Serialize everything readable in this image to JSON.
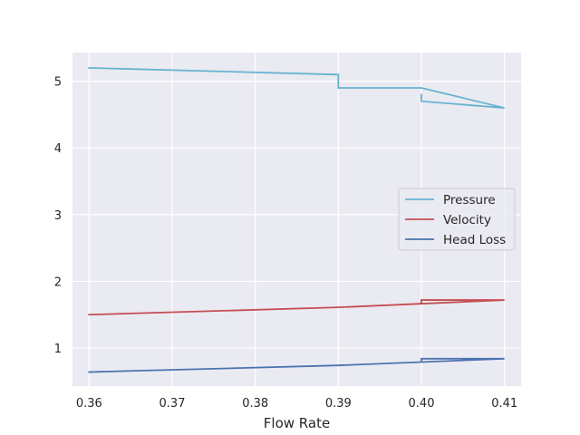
{
  "chart_data": {
    "type": "line",
    "title": "",
    "xlabel": "Flow Rate",
    "ylabel": "",
    "xlim": [
      0.358,
      0.412
    ],
    "ylim": [
      0.43,
      5.43
    ],
    "xticks": [
      0.36,
      0.37,
      0.38,
      0.39,
      0.4,
      0.41
    ],
    "xtick_labels": [
      "0.36",
      "0.37",
      "0.38",
      "0.39",
      "0.40",
      "0.41"
    ],
    "yticks": [
      1,
      2,
      3,
      4,
      5
    ],
    "ytick_labels": [
      "1",
      "2",
      "3",
      "4",
      "5"
    ],
    "grid": true,
    "legend_position": "center-right",
    "series": [
      {
        "name": "Pressure",
        "color": "#67b3d0",
        "points": [
          [
            0.36,
            5.2
          ],
          [
            0.39,
            5.1
          ],
          [
            0.39,
            4.9
          ],
          [
            0.4,
            4.9
          ],
          [
            0.41,
            4.6
          ],
          [
            0.4,
            4.7
          ],
          [
            0.4,
            4.8
          ]
        ]
      },
      {
        "name": "Velocity",
        "color": "#c44e52",
        "points": [
          [
            0.36,
            1.5
          ],
          [
            0.39,
            1.61
          ],
          [
            0.41,
            1.72
          ],
          [
            0.4,
            1.72
          ],
          [
            0.4,
            1.68
          ]
        ]
      },
      {
        "name": "Head Loss",
        "color": "#4c72b0",
        "points": [
          [
            0.36,
            0.64
          ],
          [
            0.39,
            0.74
          ],
          [
            0.41,
            0.84
          ],
          [
            0.4,
            0.84
          ],
          [
            0.4,
            0.79
          ]
        ]
      }
    ]
  }
}
